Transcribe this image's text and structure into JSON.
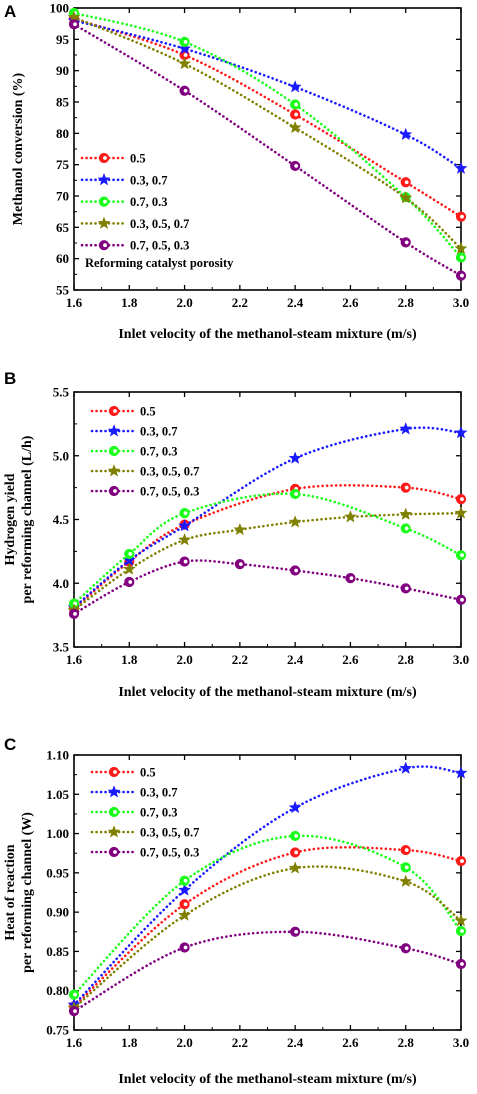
{
  "colors": {
    "0.5": "#ff1a1a",
    "0.3, 0.7": "#1a1aff",
    "0.7, 0.3": "#1aff1a",
    "0.3, 0.5, 0.7": "#808000",
    "0.7, 0.5, 0.3": "#800080"
  },
  "chart_data": [
    {
      "panel_label": "A",
      "type": "line",
      "xlabel": "Inlet velocity of the methanol-steam mixture (m/s)",
      "ylabel": "Methanol conversion (%)",
      "xlim": [
        1.6,
        3.0
      ],
      "ylim": [
        55,
        100
      ],
      "xticks": [
        "1.6",
        "1.8",
        "2.0",
        "2.2",
        "2.4",
        "2.6",
        "2.8",
        "3.0"
      ],
      "yticks": [
        "55",
        "60",
        "65",
        "70",
        "75",
        "80",
        "85",
        "90",
        "95",
        "100"
      ],
      "legend_position": "lower-left",
      "annotation": "Reforming catalyst porosity",
      "series": [
        {
          "name": "0.5",
          "marker": "circle",
          "x": [
            1.6,
            2.0,
            2.4,
            2.8,
            3.0
          ],
          "values": [
            98.3,
            92.5,
            83.0,
            72.2,
            66.7
          ]
        },
        {
          "name": "0.3, 0.7",
          "marker": "star",
          "x": [
            1.6,
            2.0,
            2.4,
            2.8,
            3.0
          ],
          "values": [
            98.0,
            93.5,
            87.4,
            79.8,
            74.4
          ]
        },
        {
          "name": "0.7, 0.3",
          "marker": "circle",
          "x": [
            1.6,
            2.0,
            2.4,
            2.8,
            3.0
          ],
          "values": [
            99.2,
            94.6,
            84.6,
            69.8,
            60.2
          ]
        },
        {
          "name": "0.3, 0.5, 0.7",
          "marker": "star",
          "x": [
            1.6,
            2.0,
            2.4,
            2.8,
            3.0
          ],
          "values": [
            98.5,
            91.1,
            80.9,
            69.7,
            61.6
          ]
        },
        {
          "name": "0.7, 0.5, 0.3",
          "marker": "circle",
          "x": [
            1.6,
            2.0,
            2.4,
            2.8,
            3.0
          ],
          "values": [
            97.4,
            86.8,
            74.8,
            62.6,
            57.3
          ]
        }
      ]
    },
    {
      "panel_label": "B",
      "type": "line",
      "xlabel": "Inlet velocity of the methanol-steam mixture (m/s)",
      "ylabel": [
        "Hydrogen yield",
        "per reforming channel (L/h)"
      ],
      "xlim": [
        1.6,
        3.0
      ],
      "ylim": [
        3.5,
        5.5
      ],
      "xticks": [
        "1.6",
        "1.8",
        "2.0",
        "2.2",
        "2.4",
        "2.6",
        "2.8",
        "3.0"
      ],
      "yticks": [
        "3.5",
        "4.0",
        "4.5",
        "5.0",
        "5.5"
      ],
      "legend_position": "top-left",
      "series": [
        {
          "name": "0.5",
          "marker": "circle",
          "x": [
            1.6,
            1.8,
            2.0,
            2.4,
            2.8,
            3.0
          ],
          "values": [
            3.8,
            4.17,
            4.46,
            4.74,
            4.75,
            4.66
          ]
        },
        {
          "name": "0.3, 0.7",
          "marker": "star",
          "x": [
            1.6,
            1.8,
            2.0,
            2.4,
            2.8,
            3.0
          ],
          "values": [
            3.81,
            4.18,
            4.45,
            4.98,
            5.21,
            5.18
          ]
        },
        {
          "name": "0.7, 0.3",
          "marker": "circle",
          "x": [
            1.6,
            1.8,
            2.0,
            2.4,
            2.8,
            3.0
          ],
          "values": [
            3.84,
            4.23,
            4.55,
            4.7,
            4.43,
            4.22
          ]
        },
        {
          "name": "0.3, 0.5, 0.7",
          "marker": "star",
          "x": [
            1.6,
            1.8,
            2.0,
            2.2,
            2.4,
            2.6,
            2.8,
            3.0
          ],
          "values": [
            3.79,
            4.11,
            4.34,
            4.42,
            4.48,
            4.52,
            4.54,
            4.55
          ]
        },
        {
          "name": "0.7, 0.5, 0.3",
          "marker": "circle",
          "x": [
            1.6,
            1.8,
            2.0,
            2.2,
            2.4,
            2.6,
            2.8,
            3.0
          ],
          "values": [
            3.76,
            4.01,
            4.17,
            4.15,
            4.1,
            4.04,
            3.96,
            3.87
          ]
        }
      ]
    },
    {
      "panel_label": "C",
      "type": "line",
      "xlabel": "Inlet velocity of the methanol-steam mixture (m/s)",
      "ylabel": [
        "Heat of reaction",
        "per reforming channel (W)"
      ],
      "xlim": [
        1.6,
        3.0
      ],
      "ylim": [
        0.75,
        1.1
      ],
      "xticks": [
        "1.6",
        "1.8",
        "2.0",
        "2.2",
        "2.4",
        "2.6",
        "2.8",
        "3.0"
      ],
      "yticks": [
        "0.75",
        "0.80",
        "0.85",
        "0.90",
        "0.95",
        "1.00",
        "1.05",
        "1.10"
      ],
      "legend_position": "top-left",
      "series": [
        {
          "name": "0.5",
          "marker": "circle",
          "x": [
            1.6,
            2.0,
            2.4,
            2.8,
            3.0
          ],
          "values": [
            0.78,
            0.91,
            0.976,
            0.979,
            0.965
          ]
        },
        {
          "name": "0.3, 0.7",
          "marker": "star",
          "x": [
            1.6,
            2.0,
            2.4,
            2.8,
            3.0
          ],
          "values": [
            0.782,
            0.928,
            1.033,
            1.083,
            1.077
          ]
        },
        {
          "name": "0.7, 0.3",
          "marker": "circle",
          "x": [
            1.6,
            2.0,
            2.4,
            2.8,
            3.0
          ],
          "values": [
            0.795,
            0.94,
            0.997,
            0.957,
            0.876
          ]
        },
        {
          "name": "0.3, 0.5, 0.7",
          "marker": "star",
          "x": [
            1.6,
            2.0,
            2.4,
            2.8,
            3.0
          ],
          "values": [
            0.778,
            0.896,
            0.956,
            0.939,
            0.889
          ]
        },
        {
          "name": "0.7, 0.5, 0.3",
          "marker": "circle",
          "x": [
            1.6,
            2.0,
            2.4,
            2.8,
            3.0
          ],
          "values": [
            0.774,
            0.855,
            0.875,
            0.854,
            0.834
          ]
        }
      ]
    }
  ]
}
